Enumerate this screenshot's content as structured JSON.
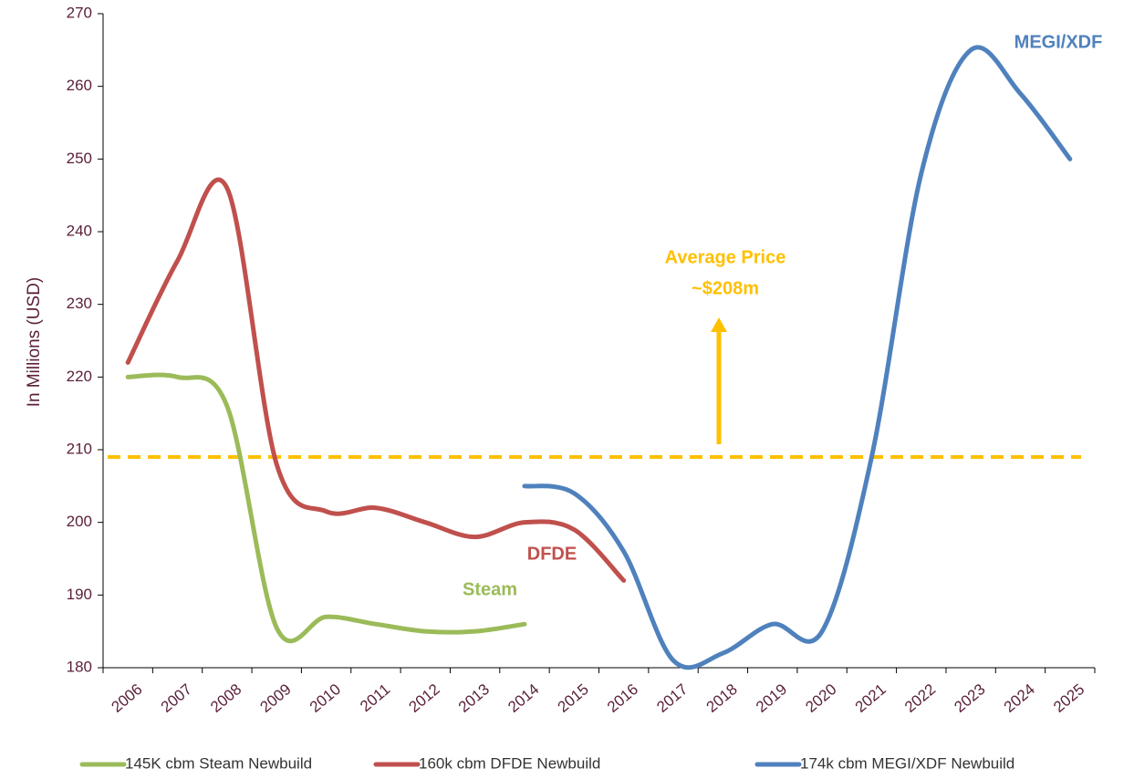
{
  "chart_data": {
    "type": "line",
    "y_axis_label": "In Millions (USD)",
    "categories": [
      "2006",
      "2007",
      "2008",
      "2009",
      "2010",
      "2011",
      "2012",
      "2013",
      "2014",
      "2015",
      "2016",
      "2017",
      "2018",
      "2019",
      "2020",
      "2021",
      "2022",
      "2023",
      "2024",
      "2025"
    ],
    "series": [
      {
        "name": "145K cbm Steam Newbuild",
        "color": "#9bbb59",
        "values": [
          220,
          220,
          216,
          185.5,
          187,
          186,
          185,
          185,
          186,
          null,
          null,
          null,
          null,
          null,
          null,
          null,
          null,
          null,
          null,
          null
        ]
      },
      {
        "name": "160k cbm DFDE Newbuild",
        "color": "#c0504d",
        "values": [
          222,
          236,
          246,
          208,
          201.5,
          202,
          200,
          198,
          200,
          199,
          192,
          null,
          null,
          null,
          null,
          null,
          null,
          null,
          null,
          null
        ]
      },
      {
        "name": "174k cbm MEGI/XDF Newbuild",
        "color": "#4f81bd",
        "values": [
          null,
          null,
          null,
          null,
          null,
          null,
          null,
          null,
          205,
          204,
          196,
          181,
          182,
          186,
          185,
          209,
          248,
          265,
          259,
          250
        ]
      }
    ],
    "ylim": [
      180,
      270
    ],
    "yticks": [
      180,
      190,
      200,
      210,
      220,
      230,
      240,
      250,
      260,
      270
    ],
    "average_line": {
      "value": 209,
      "color": "#ffc000",
      "label": "Average Price",
      "sublabel": "~$208m"
    },
    "annotations": [
      "Steam",
      "DFDE",
      "MEGI/XDF"
    ]
  }
}
